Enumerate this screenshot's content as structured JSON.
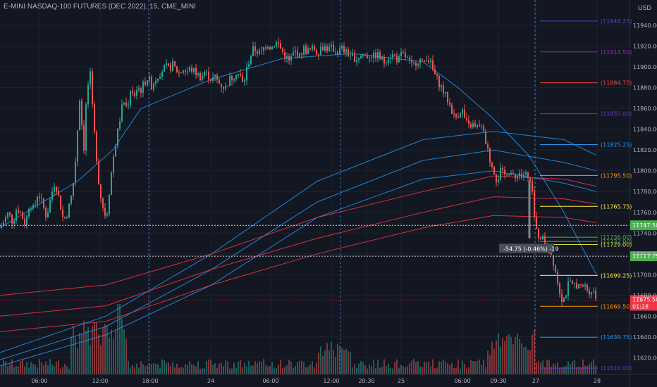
{
  "header": {
    "title": "E-MINI NASDAQ-100 FUTURES (DEC 2022), 15, CME_MINI",
    "currency": "USD"
  },
  "chart_data": {
    "type": "candlestick",
    "y_range": [
      11605,
      11960
    ],
    "y_ticks": [
      11620,
      11640,
      11660,
      11680,
      11700,
      11720,
      11740,
      11760,
      11780,
      11800,
      11820,
      11840,
      11860,
      11880,
      11900,
      11920,
      11940
    ],
    "x_ticks": [
      "06:00",
      "12:00",
      "18:00",
      "24",
      "06:00",
      "12:00",
      "20:30",
      "25",
      "06:00",
      "09:30",
      "27",
      "28"
    ],
    "session_dividers": [
      "18:00",
      "12:00",
      "27"
    ],
    "current_price": {
      "label": "11675.50",
      "timer": "01:28",
      "color": "#f23645"
    },
    "horizontal_markers": [
      {
        "label": "11747.50",
        "color": "#4caf50"
      },
      {
        "label": "11717.75",
        "color": "#4caf50"
      }
    ],
    "measure_tooltip": "-54.75 (-0.46%) -19",
    "levels": [
      {
        "value": 11944.25,
        "label": "(11944.25)",
        "color": "#3f51b5"
      },
      {
        "value": 11914.5,
        "label": "(11914.50)",
        "color": "#9c27b0"
      },
      {
        "value": 11884.75,
        "label": "(11884.75)",
        "color": "#f44336"
      },
      {
        "value": 11855.0,
        "label": "(11855.00)",
        "color": "#673ab7"
      },
      {
        "value": 11825.25,
        "label": "(11825.25)",
        "color": "#2196f3"
      },
      {
        "value": 11795.5,
        "label": "(11795.50)",
        "color": "#ff9800"
      },
      {
        "value": 11765.75,
        "label": "(11765.75)",
        "color": "#ffeb3b"
      },
      {
        "value": 11736.0,
        "label": "(11736.00)",
        "color": "#4caf50"
      },
      {
        "value": 11732.0,
        "label": "(11732.00)",
        "color": "#4caf50"
      },
      {
        "value": 11729.0,
        "label": "(11729.00)",
        "color": "#cddc39"
      },
      {
        "value": 11699.25,
        "label": "(11699.25)",
        "color": "#ffeb3b"
      },
      {
        "value": 11669.5,
        "label": "(11669.50)",
        "color": "#ff9800"
      },
      {
        "value": 11639.75,
        "label": "(11639.75)",
        "color": "#2196f3"
      },
      {
        "value": 11610.0,
        "label": "(11610.00)",
        "color": "#673ab7"
      }
    ],
    "close_path": [
      [
        0,
        11745
      ],
      [
        6,
        11752
      ],
      [
        12,
        11760
      ],
      [
        18,
        11750
      ],
      [
        24,
        11765
      ],
      [
        30,
        11758
      ],
      [
        36,
        11748
      ],
      [
        42,
        11770
      ],
      [
        48,
        11762
      ],
      [
        54,
        11780
      ],
      [
        60,
        11768
      ],
      [
        66,
        11755
      ],
      [
        72,
        11775
      ],
      [
        78,
        11790
      ],
      [
        84,
        11772
      ],
      [
        90,
        11752
      ],
      [
        96,
        11760
      ],
      [
        102,
        11778
      ],
      [
        106,
        11800
      ],
      [
        110,
        11840
      ],
      [
        113,
        11870
      ],
      [
        116,
        11845
      ],
      [
        118,
        11800
      ],
      [
        120,
        11845
      ],
      [
        124,
        11880
      ],
      [
        128,
        11892
      ],
      [
        132,
        11850
      ],
      [
        136,
        11820
      ],
      [
        140,
        11790
      ],
      [
        144,
        11770
      ],
      [
        148,
        11760
      ],
      [
        151,
        11755
      ],
      [
        155,
        11780
      ],
      [
        160,
        11810
      ],
      [
        165,
        11830
      ],
      [
        170,
        11850
      ],
      [
        175,
        11868
      ],
      [
        180,
        11860
      ],
      [
        185,
        11875
      ],
      [
        190,
        11872
      ],
      [
        195,
        11880
      ],
      [
        200,
        11878
      ],
      [
        205,
        11885
      ],
      [
        210,
        11890
      ],
      [
        215,
        11882
      ],
      [
        220,
        11888
      ],
      [
        225,
        11893
      ],
      [
        230,
        11897
      ],
      [
        235,
        11900
      ],
      [
        240,
        11898
      ],
      [
        245,
        11902
      ],
      [
        250,
        11897
      ],
      [
        255,
        11894
      ],
      [
        260,
        11898
      ],
      [
        265,
        11895
      ],
      [
        270,
        11898
      ],
      [
        275,
        11896
      ],
      [
        280,
        11893
      ],
      [
        285,
        11890
      ],
      [
        290,
        11895
      ],
      [
        295,
        11892
      ],
      [
        300,
        11888
      ],
      [
        305,
        11890
      ],
      [
        310,
        11885
      ],
      [
        315,
        11882
      ],
      [
        320,
        11880
      ],
      [
        325,
        11888
      ],
      [
        330,
        11890
      ],
      [
        335,
        11895
      ],
      [
        340,
        11892
      ],
      [
        345,
        11882
      ],
      [
        350,
        11898
      ],
      [
        355,
        11910
      ],
      [
        360,
        11918
      ],
      [
        365,
        11915
      ],
      [
        370,
        11912
      ],
      [
        375,
        11920
      ],
      [
        380,
        11922
      ],
      [
        385,
        11918
      ],
      [
        390,
        11924
      ],
      [
        395,
        11922
      ],
      [
        400,
        11915
      ],
      [
        405,
        11910
      ],
      [
        410,
        11905
      ],
      [
        415,
        11912
      ],
      [
        420,
        11915
      ],
      [
        425,
        11910
      ],
      [
        430,
        11918
      ],
      [
        435,
        11915
      ],
      [
        440,
        11916
      ],
      [
        445,
        11918
      ],
      [
        450,
        11914
      ],
      [
        455,
        11918
      ],
      [
        460,
        11920
      ],
      [
        465,
        11917
      ],
      [
        470,
        11918
      ],
      [
        475,
        11916
      ],
      [
        480,
        11915
      ],
      [
        485,
        11918
      ],
      [
        490,
        11914
      ],
      [
        495,
        11912
      ],
      [
        500,
        11910
      ],
      [
        505,
        11908
      ],
      [
        510,
        11910
      ],
      [
        515,
        11912
      ],
      [
        520,
        11910
      ],
      [
        525,
        11912
      ],
      [
        530,
        11910
      ],
      [
        535,
        11912
      ],
      [
        540,
        11908
      ],
      [
        545,
        11905
      ],
      [
        550,
        11910
      ],
      [
        555,
        11912
      ],
      [
        560,
        11910
      ],
      [
        565,
        11906
      ],
      [
        570,
        11912
      ],
      [
        575,
        11910
      ],
      [
        580,
        11905
      ],
      [
        585,
        11900
      ],
      [
        590,
        11905
      ],
      [
        595,
        11908
      ],
      [
        600,
        11902
      ],
      [
        605,
        11910
      ],
      [
        610,
        11905
      ],
      [
        615,
        11895
      ],
      [
        620,
        11888
      ],
      [
        625,
        11882
      ],
      [
        630,
        11875
      ],
      [
        635,
        11868
      ],
      [
        640,
        11860
      ],
      [
        645,
        11850
      ],
      [
        650,
        11855
      ],
      [
        655,
        11860
      ],
      [
        660,
        11848
      ],
      [
        665,
        11842
      ],
      [
        670,
        11845
      ],
      [
        675,
        11840
      ],
      [
        680,
        11845
      ],
      [
        685,
        11838
      ],
      [
        690,
        11825
      ],
      [
        695,
        11810
      ],
      [
        700,
        11802
      ],
      [
        705,
        11790
      ],
      [
        710,
        11800
      ],
      [
        715,
        11795
      ],
      [
        720,
        11800
      ],
      [
        725,
        11798
      ],
      [
        730,
        11790
      ],
      [
        735,
        11800
      ],
      [
        740,
        11795
      ],
      [
        745,
        11798
      ],
      [
        750,
        11790
      ],
      [
        753,
        11788
      ],
      [
        756,
        11770
      ],
      [
        759,
        11748
      ],
      [
        762,
        11740
      ],
      [
        765,
        11735
      ],
      [
        768,
        11738
      ],
      [
        771,
        11732
      ],
      [
        774,
        11728
      ],
      [
        777,
        11725
      ],
      [
        780,
        11722
      ],
      [
        783,
        11718
      ],
      [
        786,
        11710
      ],
      [
        789,
        11700
      ],
      [
        792,
        11690
      ],
      [
        795,
        11682
      ],
      [
        798,
        11675
      ],
      [
        801,
        11678
      ],
      [
        804,
        11685
      ],
      [
        807,
        11692
      ],
      [
        810,
        11690
      ],
      [
        813,
        11688
      ],
      [
        816,
        11692
      ],
      [
        819,
        11690
      ],
      [
        822,
        11688
      ],
      [
        825,
        11686
      ],
      [
        828,
        11690
      ],
      [
        831,
        11688
      ],
      [
        834,
        11685
      ],
      [
        837,
        11684
      ],
      [
        840,
        11686
      ],
      [
        843,
        11682
      ],
      [
        846,
        11675.5
      ]
    ]
  }
}
